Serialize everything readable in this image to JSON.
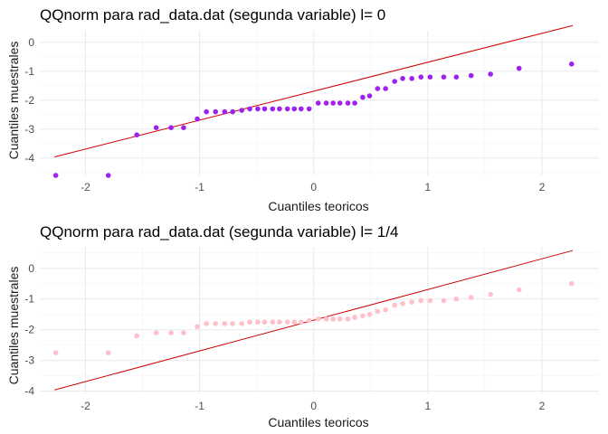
{
  "chart_data": [
    {
      "type": "scatter",
      "title": "QQnorm para rad_data.dat (segunda variable) l= 0",
      "xlabel": "Cuantiles teoricos",
      "ylabel": "Cuantiles muestrales",
      "xlim": [
        -2.4,
        2.5
      ],
      "ylim": [
        -4.6,
        0.4
      ],
      "xticks": [
        -2,
        -1,
        0,
        1,
        2
      ],
      "xtick_labels": [
        "-2",
        "-1",
        "0",
        "1",
        "2"
      ],
      "yticks": [
        0,
        -1,
        -2,
        -3,
        -4
      ],
      "ytick_labels": [
        "0",
        "-1",
        "-2",
        "-3",
        "-4"
      ],
      "grid": true,
      "point_color": "#a020f0",
      "line_color": "#cc0000",
      "reference_line": {
        "x": [
          -2.27,
          2.27
        ],
        "y": [
          -3.96,
          0.58
        ]
      },
      "points": {
        "x": [
          -2.26,
          -1.8,
          -1.55,
          -1.38,
          -1.25,
          -1.14,
          -1.02,
          -0.94,
          -0.86,
          -0.78,
          -0.71,
          -0.63,
          -0.56,
          -0.49,
          -0.43,
          -0.36,
          -0.3,
          -0.23,
          -0.17,
          -0.11,
          -0.04,
          0.04,
          0.11,
          0.17,
          0.23,
          0.3,
          0.36,
          0.43,
          0.49,
          0.56,
          0.63,
          0.71,
          0.78,
          0.86,
          0.94,
          1.02,
          1.14,
          1.25,
          1.38,
          1.55,
          1.8,
          2.26
        ],
        "y": [
          -4.6,
          -4.6,
          -3.2,
          -2.95,
          -2.95,
          -2.95,
          -2.65,
          -2.4,
          -2.4,
          -2.4,
          -2.4,
          -2.35,
          -2.3,
          -2.3,
          -2.3,
          -2.3,
          -2.3,
          -2.3,
          -2.3,
          -2.3,
          -2.3,
          -2.1,
          -2.1,
          -2.1,
          -2.1,
          -2.1,
          -2.1,
          -1.9,
          -1.85,
          -1.6,
          -1.6,
          -1.35,
          -1.25,
          -1.25,
          -1.2,
          -1.2,
          -1.2,
          -1.2,
          -1.15,
          -1.1,
          -0.9,
          -0.75
        ]
      }
    },
    {
      "type": "scatter",
      "title": "QQnorm para rad_data.dat (segunda variable) l= 1/4",
      "xlabel": "Cuantiles teoricos",
      "ylabel": "Cuantiles muestrales",
      "xlim": [
        -2.4,
        2.5
      ],
      "ylim": [
        -4.1,
        0.7
      ],
      "xticks": [
        -2,
        -1,
        0,
        1,
        2
      ],
      "xtick_labels": [
        "-2",
        "-1",
        "0",
        "1",
        "2"
      ],
      "yticks": [
        0,
        -1,
        -2,
        -3,
        -4
      ],
      "ytick_labels": [
        "0",
        "-1",
        "-2",
        "-3",
        "-4"
      ],
      "grid": true,
      "point_color": "#ffc0cb",
      "line_color": "#cc0000",
      "reference_line": {
        "x": [
          -2.27,
          2.27
        ],
        "y": [
          -3.96,
          0.58
        ]
      },
      "points": {
        "x": [
          -2.26,
          -1.8,
          -1.55,
          -1.38,
          -1.25,
          -1.14,
          -1.02,
          -0.94,
          -0.86,
          -0.78,
          -0.71,
          -0.63,
          -0.56,
          -0.49,
          -0.43,
          -0.36,
          -0.3,
          -0.23,
          -0.17,
          -0.11,
          -0.04,
          0.04,
          0.11,
          0.17,
          0.23,
          0.3,
          0.36,
          0.43,
          0.49,
          0.56,
          0.63,
          0.71,
          0.78,
          0.86,
          0.94,
          1.02,
          1.14,
          1.25,
          1.38,
          1.55,
          1.8,
          2.26
        ],
        "y": [
          -2.75,
          -2.75,
          -2.2,
          -2.1,
          -2.1,
          -2.1,
          -1.9,
          -1.8,
          -1.8,
          -1.8,
          -1.8,
          -1.8,
          -1.75,
          -1.75,
          -1.75,
          -1.75,
          -1.75,
          -1.75,
          -1.75,
          -1.75,
          -1.7,
          -1.65,
          -1.65,
          -1.65,
          -1.65,
          -1.65,
          -1.6,
          -1.55,
          -1.5,
          -1.4,
          -1.35,
          -1.2,
          -1.15,
          -1.1,
          -1.05,
          -1.05,
          -1.05,
          -1.0,
          -0.95,
          -0.85,
          -0.7,
          -0.5
        ]
      }
    }
  ]
}
